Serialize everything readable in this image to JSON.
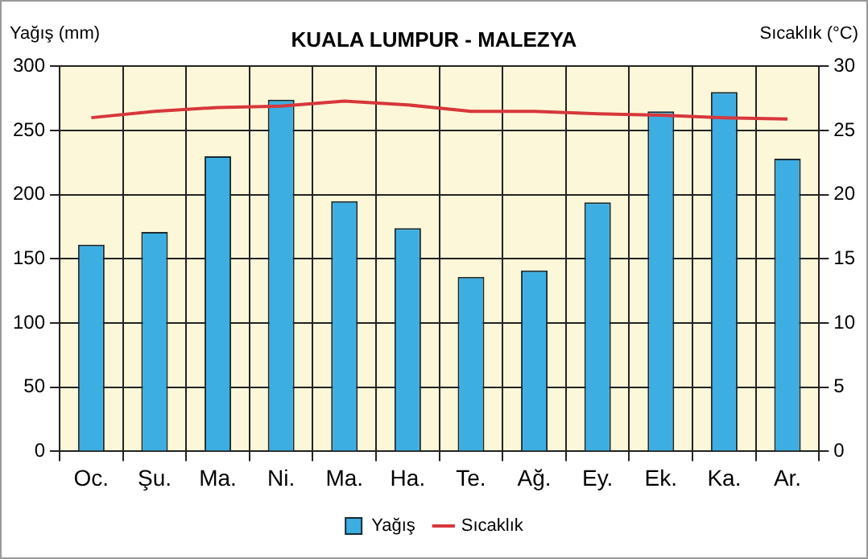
{
  "chart_data": {
    "type": "bar",
    "title": "KUALA LUMPUR - MALEZYA",
    "ylabel": "Yağış (mm)",
    "y2label": "Sıcaklık (°C)",
    "categories": [
      "Oc.",
      "Şu.",
      "Ma.",
      "Ni.",
      "Ma.",
      "Ha.",
      "Te.",
      "Ağ.",
      "Ey.",
      "Ek.",
      "Ka.",
      "Ar."
    ],
    "series": [
      {
        "name": "Yağış",
        "color": "#3daee2",
        "values": [
          161,
          171,
          230,
          274,
          195,
          174,
          136,
          141,
          194,
          265,
          280,
          228
        ]
      },
      {
        "name": "Sıcaklık",
        "type": "line",
        "axis": "y2",
        "color": "#d7373c",
        "values": [
          26.0,
          26.5,
          26.8,
          26.9,
          27.3,
          27.0,
          26.5,
          26.5,
          26.3,
          26.2,
          26.0,
          25.9
        ]
      }
    ],
    "ylim": [
      0,
      300
    ],
    "yticks": [
      0,
      50,
      100,
      150,
      200,
      250,
      300
    ],
    "y2lim": [
      0,
      30
    ],
    "y2ticks": [
      0,
      5,
      10,
      15,
      20,
      25,
      30
    ],
    "grid": true,
    "legend": "bottom",
    "marker": "none",
    "line_style": "solid"
  }
}
